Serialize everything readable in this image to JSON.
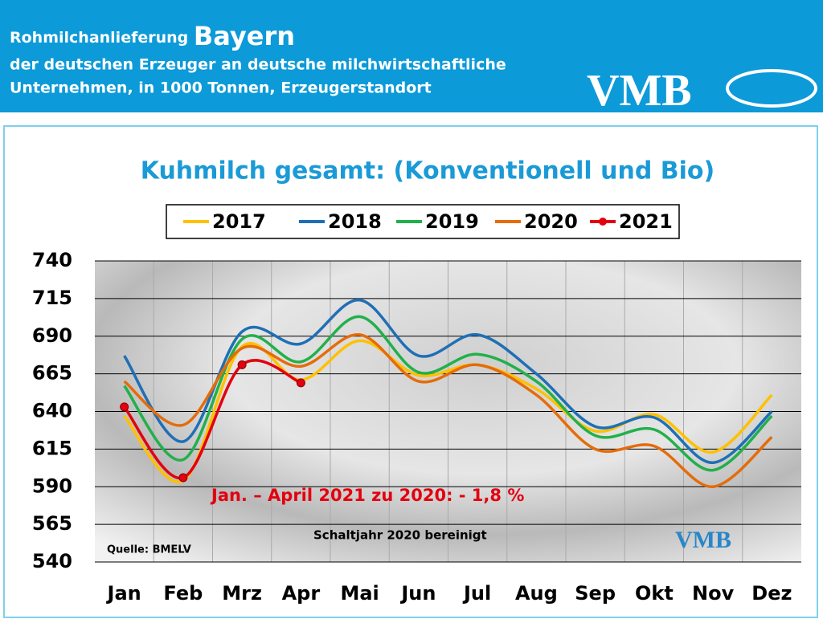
{
  "header": {
    "title_prefix": "Rohmilchanlieferung",
    "title_main": "Bayern",
    "line2": "der deutschen Erzeuger an deutsche milchwirtschaftliche",
    "line3": "Unternehmen, in 1000 Tonnen, Erzeugerstandort",
    "logo": "VMB"
  },
  "chart_data": {
    "type": "line",
    "title": "Kuhmilch gesamt: (Konventionell und Bio)",
    "categories": [
      "Jan",
      "Feb",
      "Mrz",
      "Apr",
      "Mai",
      "Jun",
      "Jul",
      "Aug",
      "Sep",
      "Okt",
      "Nov",
      "Dez"
    ],
    "series": [
      {
        "name": "2017",
        "color": "#ffc000",
        "values": [
          637,
          594,
          683,
          661,
          687,
          664,
          671,
          655,
          627,
          638,
          613,
          651
        ]
      },
      {
        "name": "2018",
        "color": "#1f6fb5",
        "values": [
          677,
          620,
          693,
          685,
          714,
          677,
          691,
          665,
          630,
          636,
          606,
          640
        ]
      },
      {
        "name": "2019",
        "color": "#22b04b",
        "values": [
          657,
          608,
          688,
          673,
          703,
          666,
          678,
          660,
          624,
          628,
          601,
          637
        ]
      },
      {
        "name": "2020",
        "color": "#e46c0a",
        "values": [
          660,
          631,
          682,
          670,
          691,
          660,
          671,
          651,
          615,
          617,
          590,
          623
        ]
      },
      {
        "name": "2021",
        "color": "#e3000f",
        "marker": true,
        "values": [
          643,
          596,
          671,
          659,
          null,
          null,
          null,
          null,
          null,
          null,
          null,
          null
        ]
      }
    ],
    "ylim": [
      540,
      740
    ],
    "yticks": [
      540,
      565,
      590,
      615,
      640,
      665,
      690,
      715,
      740
    ],
    "grid": true,
    "annotation": "Jan. – April 2021 zu 2020: - 1,8 %",
    "note": "Schaltjahr 2020 bereinigt",
    "source": "Quelle: BMELV"
  }
}
